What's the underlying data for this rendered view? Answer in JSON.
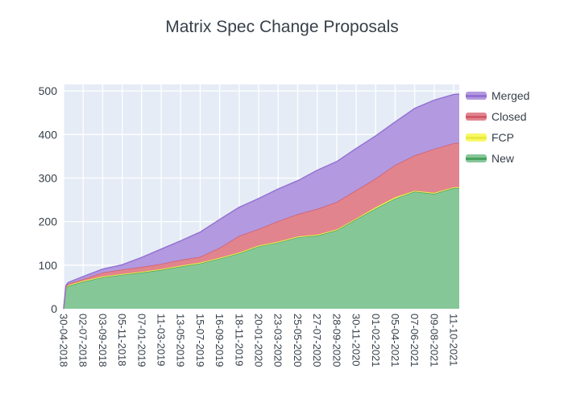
{
  "title": "Matrix Spec Change Proposals",
  "legend": {
    "items": [
      "Merged",
      "Closed",
      "FCP",
      "New"
    ]
  },
  "colors": {
    "plot_bg": "#e5ecf6",
    "grid": "#ffffff",
    "text": "#37404a",
    "new_fill": "#86c798",
    "new_line": "#49a25d",
    "fcp_fill": "#f8f865",
    "fcp_line": "#e9e93f",
    "closed_fill": "#e2848e",
    "closed_line": "#d05a68",
    "merged_fill": "#b299e0",
    "merged_line": "#9370d1"
  },
  "chart_data": {
    "type": "area",
    "stacked": true,
    "title": "Matrix Spec Change Proposals",
    "xlabel": "",
    "ylabel": "",
    "ylim": [
      0,
      515
    ],
    "grid": true,
    "legend_position": "right-top",
    "y_ticks": [
      0,
      100,
      200,
      300,
      400,
      500
    ],
    "x_tick_labels": [
      "30-04-2018",
      "02-07-2018",
      "03-09-2018",
      "05-11-2018",
      "07-01-2019",
      "11-03-2019",
      "13-05-2019",
      "15-07-2019",
      "16-09-2019",
      "18-11-2019",
      "20-01-2020",
      "23-03-2020",
      "25-05-2020",
      "27-07-2020",
      "28-09-2020",
      "30-11-2020",
      "01-02-2021",
      "05-04-2021",
      "07-06-2021",
      "09-08-2021",
      "11-10-2021"
    ],
    "x": [
      "30-04-2018",
      "07-05-2018",
      "14-05-2018",
      "02-07-2018",
      "03-09-2018",
      "05-11-2018",
      "07-01-2019",
      "11-03-2019",
      "13-05-2019",
      "15-07-2019",
      "16-09-2019",
      "18-11-2019",
      "20-01-2020",
      "23-03-2020",
      "25-05-2020",
      "27-07-2020",
      "28-09-2020",
      "30-11-2020",
      "01-02-2021",
      "05-04-2021",
      "07-06-2021",
      "09-08-2021",
      "11-10-2021",
      "29-10-2021"
    ],
    "series": [
      {
        "name": "New",
        "values": [
          0,
          45,
          52,
          62,
          72,
          78,
          83,
          89,
          97,
          104,
          115,
          127,
          143,
          152,
          164,
          168,
          180,
          205,
          230,
          253,
          269,
          264,
          277,
          277
        ]
      },
      {
        "name": "FCP",
        "values": [
          0,
          2,
          2,
          2,
          2,
          2,
          2,
          2,
          2,
          2,
          2,
          2,
          2,
          2,
          2,
          2,
          2,
          2,
          3,
          3,
          2,
          2,
          2,
          2
        ]
      },
      {
        "name": "Closed",
        "values": [
          0,
          3,
          3,
          4,
          9,
          10,
          11,
          12,
          13,
          13,
          23,
          38,
          38,
          47,
          51,
          59,
          63,
          65,
          66,
          74,
          81,
          101,
          101,
          102
        ]
      },
      {
        "name": "Merged",
        "values": [
          0,
          3,
          3,
          6,
          8,
          11,
          22,
          34,
          44,
          57,
          65,
          66,
          70,
          74,
          77,
          89,
          93,
          96,
          98,
          99,
          108,
          112,
          112,
          112
        ]
      }
    ]
  }
}
